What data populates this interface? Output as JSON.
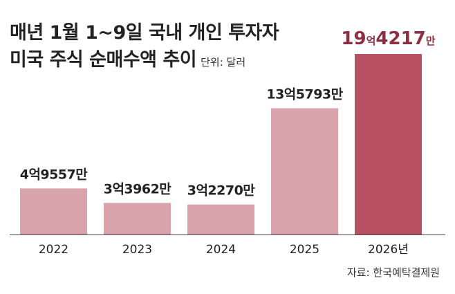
{
  "title": {
    "line1": "매년 1월 1~9일 국내 개인 투자자",
    "line2": "미국 주식 순매수액 추이",
    "unit": "단위: 달러"
  },
  "source": "자료: 한국예탁결제원",
  "colors": {
    "bar": "#d9a3ab",
    "highlight_bar": "#b85164",
    "highlight_label": "#8c2f43",
    "baseline": "#444444",
    "text": "#222222"
  },
  "chart_data": {
    "type": "bar",
    "categories": [
      "2022",
      "2023",
      "2024",
      "2025",
      "2026년"
    ],
    "values": [
      495570000,
      339620000,
      322700000,
      1357930000,
      1942170000
    ],
    "value_labels": [
      [
        {
          "t": "4억9557만",
          "s": "n"
        }
      ],
      [
        {
          "t": "3억3962만",
          "s": "n"
        }
      ],
      [
        {
          "t": "3억2270만",
          "s": "n"
        }
      ],
      [
        {
          "t": "13억5793만",
          "s": "n"
        }
      ],
      [
        {
          "t": "19",
          "s": "b"
        },
        {
          "t": "억",
          "s": "u"
        },
        {
          "t": "4217",
          "s": "b"
        },
        {
          "t": "만",
          "s": "u"
        }
      ]
    ],
    "highlight_index": 4,
    "ylim": [
      0,
      1942170000
    ],
    "grid": false,
    "legend": "none"
  }
}
